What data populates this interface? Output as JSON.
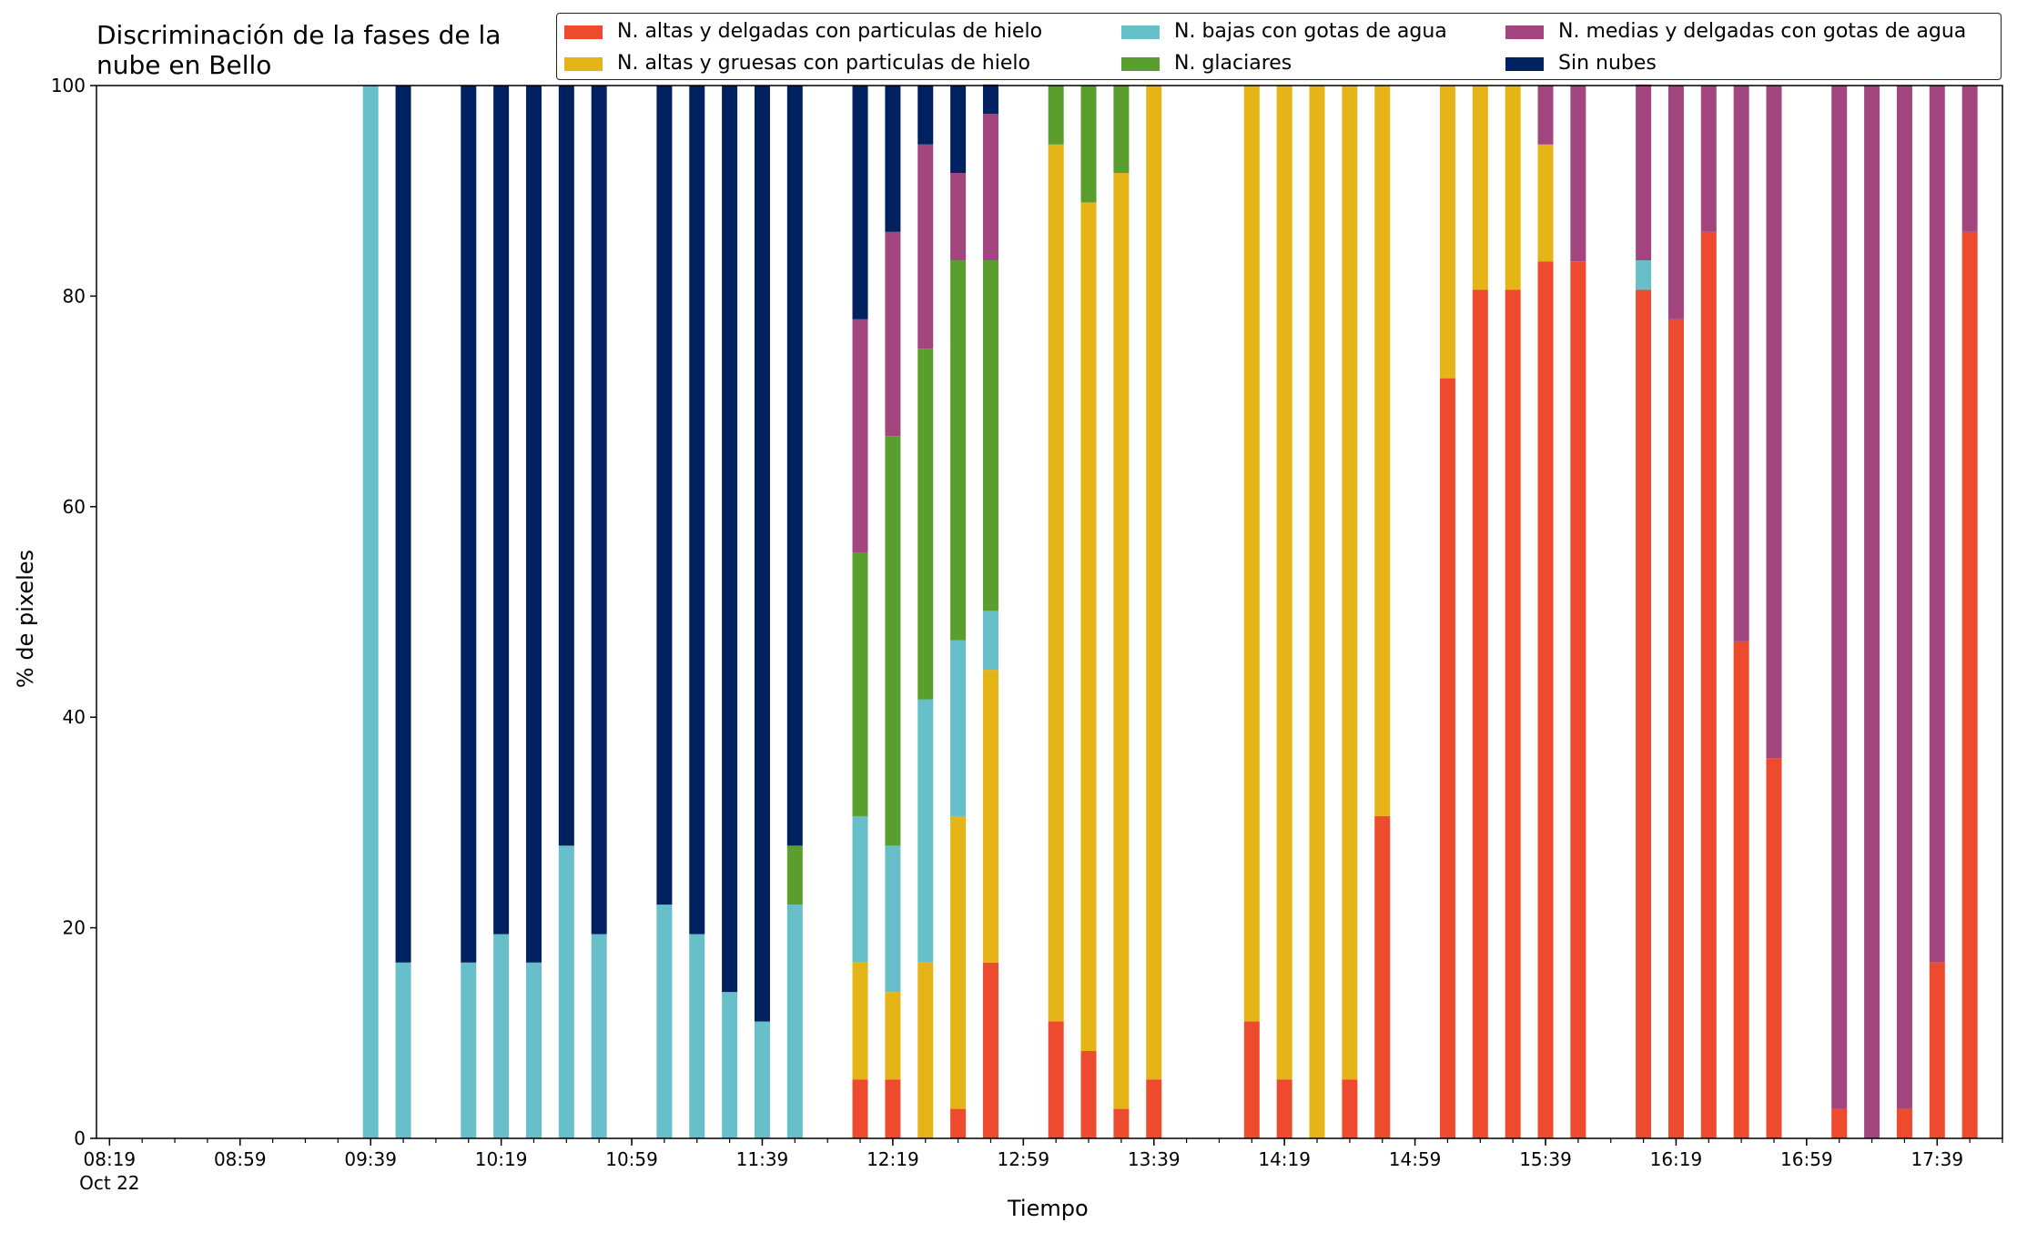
{
  "chart_data": {
    "type": "bar",
    "stacked": true,
    "title_lines": [
      "Discriminación de la fases de la",
      "nube en Bello"
    ],
    "xlabel": "Tiempo",
    "ylabel": "% de pixeles",
    "ylim": [
      0,
      100
    ],
    "yticks": [
      0,
      20,
      40,
      60,
      80,
      100
    ],
    "xlim_minutes": [
      "08:15",
      "17:59"
    ],
    "xtick_labels": [
      "08:19",
      "08:59",
      "09:39",
      "10:19",
      "10:59",
      "11:39",
      "12:19",
      "12:59",
      "13:39",
      "14:19",
      "14:59",
      "15:39",
      "16:19",
      "16:59",
      "17:39"
    ],
    "xtick_sublabel": "Oct 22",
    "minor_tick_interval_minutes": 10,
    "grid": false,
    "legend_position": "top-right",
    "times": [
      "09:39",
      "09:49",
      "10:09",
      "10:19",
      "10:29",
      "10:39",
      "10:49",
      "11:09",
      "11:19",
      "11:29",
      "11:39",
      "11:49",
      "12:09",
      "12:19",
      "12:29",
      "12:39",
      "12:49",
      "13:09",
      "13:19",
      "13:29",
      "13:39",
      "14:09",
      "14:19",
      "14:29",
      "14:39",
      "14:49",
      "15:09",
      "15:19",
      "15:29",
      "15:39",
      "15:49",
      "16:09",
      "16:19",
      "16:29",
      "16:39",
      "16:49",
      "17:09",
      "17:19",
      "17:29",
      "17:39",
      "17:49"
    ],
    "series": [
      {
        "name": "N. altas y delgadas con particulas de hielo",
        "color": "#EE4B2E",
        "values": [
          0,
          0,
          0,
          0,
          0,
          0,
          0,
          0,
          0,
          0,
          0,
          0,
          5.6,
          5.6,
          0,
          2.8,
          16.7,
          11.1,
          8.3,
          2.8,
          5.6,
          11.1,
          5.6,
          0,
          5.6,
          30.6,
          72.2,
          80.6,
          80.6,
          83.3,
          83.3,
          80.6,
          77.8,
          86.1,
          47.2,
          36.1,
          2.8,
          0,
          2.8,
          16.7,
          86.1
        ]
      },
      {
        "name": "N. altas y gruesas con particulas de hielo",
        "color": "#E5B416",
        "values": [
          0,
          0,
          0,
          0,
          0,
          0,
          0,
          0,
          0,
          0,
          0,
          0,
          11.1,
          8.3,
          16.7,
          27.8,
          27.8,
          83.3,
          80.6,
          88.9,
          94.4,
          88.9,
          94.4,
          100,
          94.4,
          69.4,
          27.8,
          19.4,
          19.4,
          11.1,
          0,
          0,
          0,
          0,
          0,
          0,
          0,
          0,
          0,
          0,
          0
        ]
      },
      {
        "name": "N. bajas con gotas de agua",
        "color": "#67BFCA",
        "values": [
          100,
          16.7,
          16.7,
          19.4,
          16.7,
          27.8,
          19.4,
          22.2,
          19.4,
          13.9,
          11.1,
          22.2,
          13.9,
          13.9,
          25,
          16.7,
          5.6,
          0,
          0,
          0,
          0,
          0,
          0,
          0,
          0,
          0,
          0,
          0,
          0,
          0,
          0,
          2.8,
          0,
          0,
          0,
          0,
          0,
          0,
          0,
          0,
          0
        ]
      },
      {
        "name": "N. glaciares",
        "color": "#5A9E2E",
        "values": [
          0,
          0,
          0,
          0,
          0,
          0,
          0,
          0,
          0,
          0,
          0,
          5.6,
          25,
          38.9,
          33.3,
          36.1,
          33.3,
          5.6,
          11.1,
          8.3,
          0,
          0,
          0,
          0,
          0,
          0,
          0,
          0,
          0,
          0,
          0,
          0,
          0,
          0,
          0,
          0,
          0,
          0,
          0,
          0,
          0
        ]
      },
      {
        "name": "N. medias y delgadas con gotas de agua",
        "color": "#A3457E",
        "values": [
          0,
          0,
          0,
          0,
          0,
          0,
          0,
          0,
          0,
          0,
          0,
          0,
          22.2,
          19.4,
          19.4,
          8.3,
          13.9,
          0,
          0,
          0,
          0,
          0,
          0,
          0,
          0,
          0,
          0,
          0,
          0,
          5.6,
          16.7,
          16.7,
          22.2,
          13.9,
          52.8,
          63.9,
          97.2,
          100,
          97.2,
          83.3,
          13.9
        ]
      },
      {
        "name": "Sin nubes",
        "color": "#00215F",
        "values": [
          0,
          83.3,
          83.3,
          80.6,
          83.3,
          72.2,
          80.6,
          77.8,
          80.6,
          86.1,
          88.9,
          72.2,
          22.2,
          13.9,
          5.6,
          8.3,
          2.8,
          0,
          0,
          0,
          0,
          0,
          0,
          0,
          0,
          0,
          0,
          0,
          0,
          0,
          0,
          0,
          0,
          0,
          0,
          0,
          0,
          0,
          0,
          0,
          0
        ]
      }
    ]
  }
}
